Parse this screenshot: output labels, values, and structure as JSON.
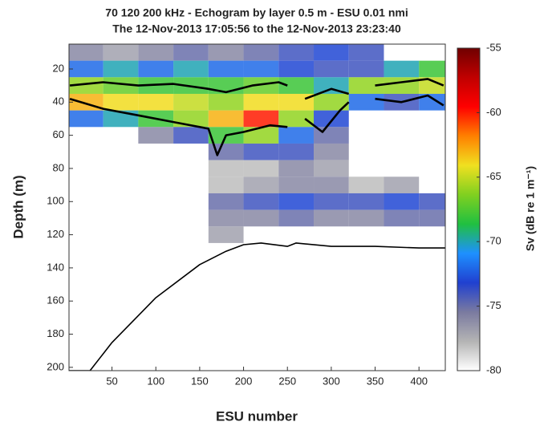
{
  "chart_data": {
    "type": "heatmap",
    "title": "70  120  200 kHz - Echogram by layer 0.5 m - ESU 0.01 nmi",
    "subtitle": "The 12-Nov-2013 17:05:56 to the 12-Nov-2013 23:23:40",
    "x_label": "ESU number",
    "y_label": "Depth (m)",
    "colorbar_label": "Sv (dB re 1 m⁻¹)",
    "xlim": [
      1,
      430
    ],
    "xticks": [
      50,
      100,
      150,
      200,
      250,
      300,
      350,
      400
    ],
    "ylim": [
      202,
      5
    ],
    "yticks": [
      20,
      40,
      60,
      80,
      100,
      120,
      140,
      160,
      180,
      200
    ],
    "clim": [
      -80,
      -55
    ],
    "cticks": [
      -80,
      -75,
      -70,
      -65,
      -60,
      -55
    ],
    "colormap": [
      "#ffffff",
      "#b4b4b4",
      "#7a7aa0",
      "#2040d0",
      "#1e90ff",
      "#20c040",
      "#80d020",
      "#f0e020",
      "#ff8000",
      "#ff0000",
      "#c00000",
      "#700000"
    ],
    "x": [
      20,
      60,
      100,
      140,
      180,
      220,
      260,
      300,
      340,
      380,
      420
    ],
    "y": [
      10,
      20,
      30,
      40,
      50,
      60,
      70,
      80,
      90,
      100,
      110,
      120
    ],
    "z": [
      [
        -76,
        -77,
        -76,
        -75,
        -76,
        -75,
        -74,
        -73,
        -74,
        null,
        null
      ],
      [
        -72,
        -70,
        -72,
        -70,
        -72,
        -72,
        -73,
        -74,
        -74,
        -70,
        -68
      ],
      [
        -66,
        -67,
        -68,
        -68,
        -68,
        -67,
        -68,
        -70,
        -66,
        -66,
        -65
      ],
      [
        -63,
        -64,
        -64,
        -65,
        -66,
        -64,
        -64,
        -66,
        -72,
        -74,
        -72
      ],
      [
        -72,
        -70,
        -68,
        -66,
        -63,
        -60,
        -66,
        -73,
        null,
        null,
        null
      ],
      [
        null,
        null,
        -76,
        -74,
        -68,
        -66,
        -72,
        -75,
        null,
        null,
        null
      ],
      [
        null,
        null,
        null,
        null,
        -75,
        -74,
        -74,
        -76,
        null,
        null,
        null
      ],
      [
        null,
        null,
        null,
        null,
        -78,
        -78,
        -76,
        -77,
        null,
        null,
        null
      ],
      [
        null,
        null,
        null,
        null,
        -78,
        -77,
        -76,
        -76,
        -78,
        -77,
        null
      ],
      [
        null,
        null,
        null,
        null,
        -75,
        -74,
        -73,
        -74,
        -74,
        -73,
        -74
      ],
      [
        null,
        null,
        null,
        null,
        -76,
        -76,
        -75,
        -76,
        -76,
        -75,
        -75
      ],
      [
        null,
        null,
        null,
        null,
        -77,
        null,
        null,
        null,
        null,
        null,
        null
      ]
    ],
    "lines": [
      {
        "color": "#000000",
        "x": [
          2,
          40,
          80,
          120,
          160,
          180,
          210,
          240,
          250,
          255,
          270,
          300,
          320,
          325,
          350,
          380,
          410,
          428
        ],
        "values": [
          30,
          28,
          30,
          29,
          32,
          34,
          30,
          28,
          30,
          null,
          38,
          32,
          35,
          null,
          30,
          28,
          26,
          30
        ]
      },
      {
        "color": "#000000",
        "x": [
          2,
          40,
          80,
          120,
          160,
          170,
          180,
          200,
          230,
          250,
          255,
          270,
          290,
          310,
          320,
          325,
          350,
          380,
          410,
          428
        ],
        "values": [
          38,
          44,
          48,
          52,
          56,
          72,
          60,
          58,
          54,
          55,
          null,
          50,
          58,
          45,
          40,
          null,
          38,
          40,
          36,
          42
        ]
      },
      {
        "color": "#000000",
        "x": [
          1,
          25,
          50,
          100,
          150,
          180,
          200,
          220,
          250,
          260,
          300,
          350,
          400,
          430
        ],
        "values": [
          202,
          202,
          185,
          158,
          138,
          130,
          126,
          125,
          127,
          125,
          127,
          127,
          128,
          128
        ]
      }
    ]
  }
}
